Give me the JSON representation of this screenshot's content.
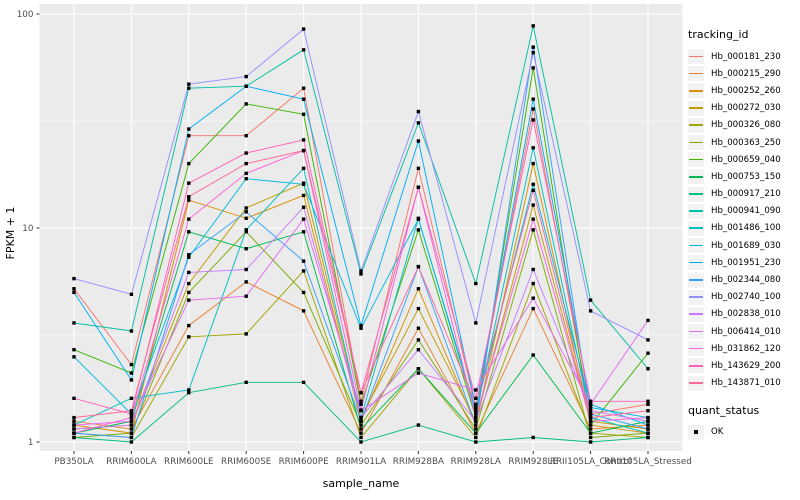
{
  "chart_data": {
    "type": "line",
    "title": "",
    "xlabel": "sample_name",
    "ylabel": "FPKM + 1",
    "y_scale": "log10",
    "y_ticks": [
      1,
      10,
      100
    ],
    "y_minor_ticks": [
      3.162,
      31.62
    ],
    "ylim": [
      0.95,
      110
    ],
    "grid": "on",
    "legend_position": "right",
    "point_marker": "black-square",
    "categories": [
      "PB350LA",
      "RRIM600LA",
      "RRIM600LE",
      "RRIM600SE",
      "RRIM600PE",
      "RRIM901LA",
      "RRIM928BA",
      "RRIM928LA",
      "RRIM928LE",
      "RRII105LA_Control",
      "RRII105LA_Stressed"
    ],
    "series": [
      {
        "name": "Hb_000181_230",
        "color": "#F8766D",
        "values": [
          5.2,
          2.3,
          27,
          27,
          45,
          1.55,
          19,
          1.45,
          36,
          1.35,
          1.5
        ]
      },
      {
        "name": "Hb_000215_290",
        "color": "#EA8331",
        "values": [
          1.25,
          1.15,
          3.5,
          5.6,
          4.1,
          1.1,
          3.4,
          1.1,
          4.2,
          1.15,
          1.2
        ]
      },
      {
        "name": "Hb_000252_260",
        "color": "#D89000",
        "values": [
          1.2,
          1.1,
          13.5,
          11.1,
          14.2,
          1.25,
          5.2,
          1.2,
          20,
          1.2,
          1.1
        ]
      },
      {
        "name": "Hb_000272_030",
        "color": "#C09B00",
        "values": [
          1.15,
          1.2,
          5.5,
          12.4,
          16.2,
          1.3,
          4.2,
          1.25,
          12.8,
          1.25,
          1.15
        ]
      },
      {
        "name": "Hb_000326_080",
        "color": "#A3A500",
        "values": [
          1.1,
          1.05,
          3.1,
          3.2,
          6.3,
          1.05,
          2.2,
          1.05,
          5.5,
          1.1,
          1.05
        ]
      },
      {
        "name": "Hb_000363_250",
        "color": "#7CAE00",
        "values": [
          1.05,
          1.1,
          5.0,
          9.6,
          5.0,
          1.2,
          3.0,
          1.15,
          9.8,
          1.05,
          1.1
        ]
      },
      {
        "name": "Hb_000659_040",
        "color": "#39B600",
        "values": [
          2.7,
          2.1,
          20,
          38,
          34,
          1.5,
          9.8,
          1.3,
          56,
          1.2,
          2.6
        ]
      },
      {
        "name": "Hb_000753_150",
        "color": "#00BB4E",
        "values": [
          1.1,
          1.25,
          9.6,
          8.0,
          9.6,
          1.15,
          2.2,
          1.1,
          2.55,
          1.1,
          1.25
        ]
      },
      {
        "name": "Hb_000917_210",
        "color": "#00BF7D",
        "values": [
          1.05,
          1.0,
          1.7,
          1.9,
          1.9,
          1.0,
          1.2,
          1.0,
          1.05,
          1.0,
          1.05
        ]
      },
      {
        "name": "Hb_000941_090",
        "color": "#00C1A3",
        "values": [
          3.6,
          3.3,
          45,
          46,
          68,
          6.1,
          31,
          5.5,
          88,
          4.6,
          2.2
        ]
      },
      {
        "name": "Hb_001486_100",
        "color": "#00BFC4",
        "values": [
          1.2,
          1.6,
          1.75,
          9.8,
          19,
          1.3,
          11.1,
          1.35,
          23.7,
          1.3,
          1.1
        ]
      },
      {
        "name": "Hb_001689_030",
        "color": "#00BAE0",
        "values": [
          2.5,
          1.35,
          7.3,
          17,
          16,
          3.4,
          11,
          1.4,
          16,
          1.45,
          1.3
        ]
      },
      {
        "name": "Hb_001951_230",
        "color": "#00B0F6",
        "values": [
          5.0,
          1.95,
          29,
          46,
          40,
          3.5,
          25.5,
          1.45,
          40,
          1.5,
          1.2
        ]
      },
      {
        "name": "Hb_002344_080",
        "color": "#35A2FF",
        "values": [
          1.1,
          1.05,
          7.5,
          11.9,
          7.0,
          1.25,
          6.6,
          1.2,
          70,
          1.35,
          1.15
        ]
      },
      {
        "name": "Hb_002740_100",
        "color": "#9590FF",
        "values": [
          5.8,
          4.9,
          47,
          51,
          85,
          6.3,
          35,
          3.6,
          66,
          4.1,
          3.0
        ]
      },
      {
        "name": "Hb_002838_010",
        "color": "#C77CFF",
        "values": [
          1.15,
          1.2,
          6.2,
          6.4,
          12.5,
          1.3,
          2.7,
          1.25,
          6.4,
          1.4,
          1.25
        ]
      },
      {
        "name": "Hb_006414_010",
        "color": "#E76BF3",
        "values": [
          1.2,
          1.25,
          4.6,
          4.8,
          11,
          1.4,
          2.1,
          1.75,
          4.7,
          1.5,
          3.7
        ]
      },
      {
        "name": "Hb_031862_120",
        "color": "#FA62DB",
        "values": [
          1.1,
          1.3,
          11,
          18,
          23,
          1.41,
          15.5,
          1.3,
          11,
          1.25,
          1.3
        ]
      },
      {
        "name": "Hb_143629_200",
        "color": "#FF62BC",
        "values": [
          1.6,
          1.35,
          16.2,
          22.4,
          25.8,
          1.7,
          15.5,
          1.6,
          32,
          1.55,
          1.55
        ]
      },
      {
        "name": "Hb_143871_010",
        "color": "#FF6A98",
        "values": [
          1.3,
          1.4,
          14,
          20,
          23,
          1.7,
          6.6,
          1.5,
          15,
          1.3,
          1.4
        ]
      }
    ]
  },
  "legend": {
    "tracking_title": "tracking_id",
    "quant_title": "quant_status",
    "quant_items": [
      {
        "label": "OK",
        "marker": "black-square"
      }
    ]
  },
  "colors": {
    "panel_bg": "#EBEBEB",
    "grid": "#FFFFFF",
    "tick_text": "#4D4D4D",
    "axis_text": "#000000",
    "point": "#000000",
    "legend_key_bg": "#F2F2F2",
    "page_bg": "#FFFFFF"
  }
}
